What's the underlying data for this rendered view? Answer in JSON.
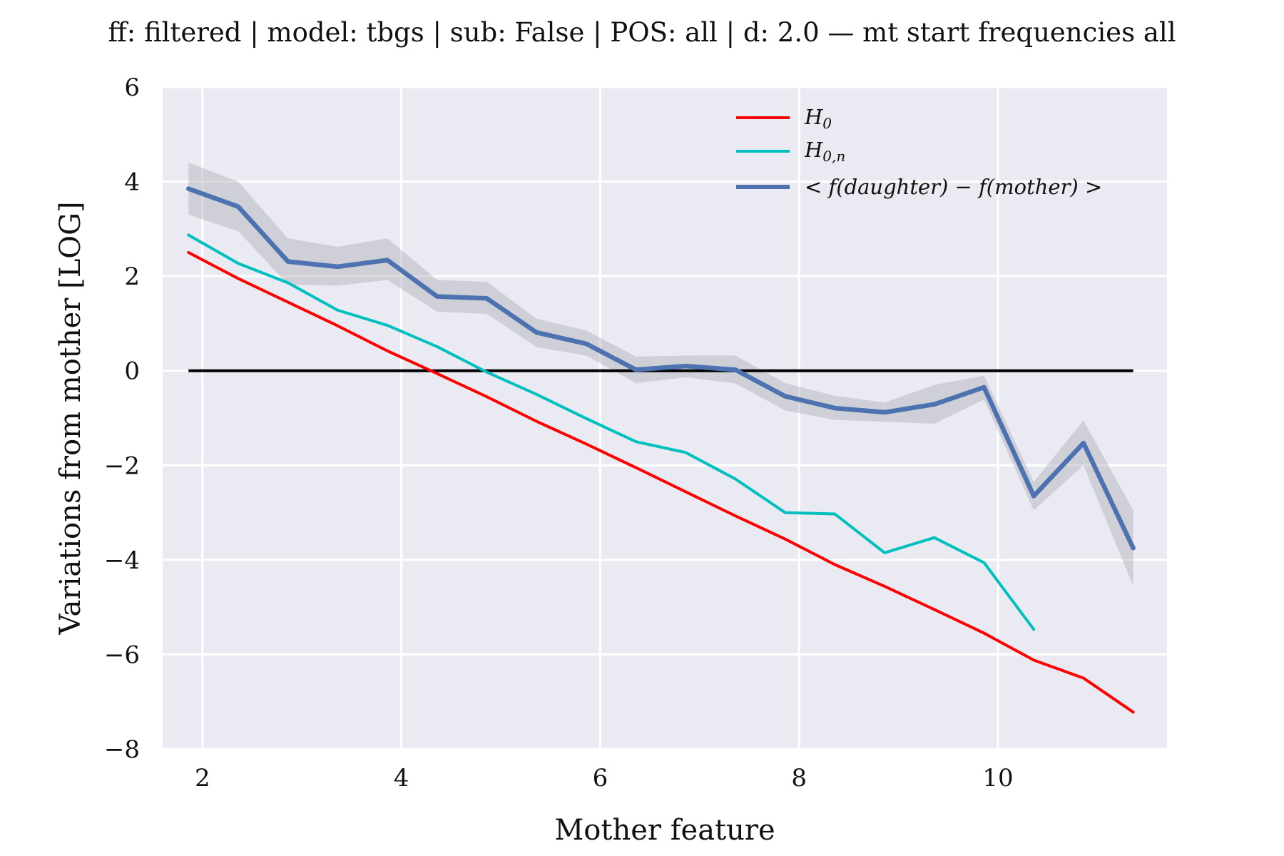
{
  "chart_data": {
    "type": "line",
    "title": "ff: filtered | model: tbgs | sub: False | POS: all | d: 2.0 — mt start frequencies all",
    "xlabel": "Mother feature",
    "ylabel": "Variations from mother [LOG]",
    "xlim": [
      1.6,
      11.7
    ],
    "ylim": [
      -8,
      6
    ],
    "xticks": [
      2,
      4,
      6,
      8,
      10
    ],
    "yticks": [
      6,
      4,
      2,
      0,
      -2,
      -4,
      -6,
      -8
    ],
    "xtick_labels": [
      "2",
      "4",
      "6",
      "8",
      "10"
    ],
    "ytick_labels": [
      "6",
      "4",
      "2",
      "0",
      "−2",
      "−4",
      "−6",
      "−8"
    ],
    "grid": true,
    "legend_position": "top-right",
    "colors": {
      "background": "#eaeaf2",
      "grid": "#ffffff",
      "h0": "#ff0000",
      "h0n": "#00bfbf",
      "mean": "#4c72b0",
      "band": "#b0b0b8",
      "zero": "#000000"
    },
    "series": [
      {
        "name": "H_0",
        "legend_label": "H0",
        "x": [
          1.86,
          2.36,
          2.86,
          3.36,
          3.86,
          4.36,
          4.86,
          5.36,
          5.86,
          6.36,
          6.86,
          7.36,
          7.86,
          8.36,
          8.86,
          9.36,
          9.86,
          10.36,
          10.86,
          11.36
        ],
        "values": [
          2.5,
          1.95,
          1.45,
          0.95,
          0.42,
          -0.06,
          -0.55,
          -1.07,
          -1.55,
          -2.05,
          -2.56,
          -3.07,
          -3.56,
          -4.1,
          -4.56,
          -5.05,
          -5.55,
          -6.12,
          -6.5,
          -7.22
        ]
      },
      {
        "name": "H_{0,n}",
        "legend_label": "H0,n",
        "x": [
          1.86,
          2.36,
          2.86,
          3.36,
          3.86,
          4.36,
          4.86,
          5.36,
          5.86,
          6.36,
          6.86,
          7.36,
          7.86,
          8.36,
          8.86,
          9.36,
          9.86,
          10.36
        ],
        "values": [
          2.87,
          2.27,
          1.86,
          1.28,
          0.96,
          0.51,
          -0.03,
          -0.5,
          -1.01,
          -1.5,
          -1.73,
          -2.29,
          -3.0,
          -3.03,
          -3.85,
          -3.53,
          -4.06,
          -5.47
        ]
      },
      {
        "name": "< f(daughter) - f(mother) >",
        "legend_label": "< f(daughter) − f(mother) >",
        "x": [
          1.86,
          2.36,
          2.86,
          3.36,
          3.86,
          4.36,
          4.86,
          5.36,
          5.86,
          6.36,
          6.86,
          7.36,
          7.86,
          8.36,
          8.86,
          9.36,
          9.86,
          10.36,
          10.86,
          11.36
        ],
        "values": [
          3.85,
          3.47,
          2.31,
          2.2,
          2.34,
          1.57,
          1.53,
          0.81,
          0.57,
          0.02,
          0.1,
          0.02,
          -0.54,
          -0.79,
          -0.88,
          -0.71,
          -0.35,
          -2.65,
          -1.53,
          -3.75
        ],
        "ci_lower": [
          3.3,
          2.95,
          1.82,
          1.8,
          1.92,
          1.25,
          1.2,
          0.5,
          0.32,
          -0.26,
          -0.14,
          -0.27,
          -0.84,
          -1.04,
          -1.08,
          -1.12,
          -0.61,
          -2.95,
          -2.0,
          -4.55
        ],
        "ci_upper": [
          4.4,
          4.0,
          2.8,
          2.62,
          2.8,
          1.92,
          1.88,
          1.1,
          0.85,
          0.3,
          0.32,
          0.32,
          -0.26,
          -0.53,
          -0.67,
          -0.3,
          -0.1,
          -2.35,
          -1.05,
          -2.95
        ]
      }
    ],
    "reference_line": {
      "y": 0,
      "x_from": 1.86,
      "x_to": 11.36
    }
  }
}
